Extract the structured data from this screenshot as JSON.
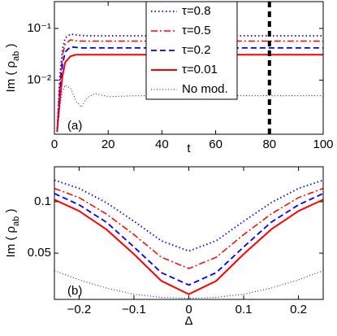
{
  "chart_data": [
    {
      "type": "line",
      "log_y": true,
      "legend": "upper center",
      "xlabel": "t",
      "ylabel": [
        "Im ( ρ",
        "ab",
        " )"
      ],
      "annotation": "(a)",
      "vline": 80,
      "xlim": [
        0,
        100
      ],
      "xticks": [
        0,
        20,
        40,
        60,
        80,
        100
      ],
      "ylim": [
        0.0009,
        0.33
      ],
      "yticks": [
        {
          "value": 0.01,
          "label": "10⁻²"
        },
        {
          "value": 0.1,
          "label": "10⁻¹"
        }
      ],
      "x": [
        1,
        2,
        3,
        4,
        6,
        8,
        10,
        12,
        15,
        20,
        30,
        40,
        60,
        80,
        100
      ],
      "series": [
        {
          "name": "τ=0.8",
          "color": "#0000ff",
          "style": "dotted",
          "values": [
            0.001,
            0.012,
            0.04,
            0.065,
            0.078,
            0.075,
            0.073,
            0.072,
            0.072,
            0.072,
            0.072,
            0.072,
            0.072,
            0.072,
            0.072
          ]
        },
        {
          "name": "τ=0.5",
          "color": "#ff0000",
          "style": "dashdot",
          "values": [
            0.001,
            0.008,
            0.03,
            0.05,
            0.06,
            0.058,
            0.057,
            0.057,
            0.057,
            0.057,
            0.057,
            0.057,
            0.057,
            0.057,
            0.057
          ]
        },
        {
          "name": "τ=0.2",
          "color": "#0000ff",
          "style": "dashed",
          "values": [
            0.001,
            0.006,
            0.02,
            0.035,
            0.044,
            0.043,
            0.042,
            0.042,
            0.042,
            0.042,
            0.042,
            0.042,
            0.042,
            0.042,
            0.042
          ]
        },
        {
          "name": "τ=0.01",
          "color": "#ff0000",
          "style": "solid",
          "values": [
            0.001,
            0.004,
            0.012,
            0.022,
            0.029,
            0.031,
            0.031,
            0.031,
            0.031,
            0.031,
            0.031,
            0.031,
            0.031,
            0.031,
            0.031
          ]
        },
        {
          "name": "No mod.",
          "color": "#0000ff",
          "style": "finedot",
          "values": [
            0.001,
            0.003,
            0.006,
            0.008,
            0.007,
            0.004,
            0.003,
            0.0045,
            0.0055,
            0.0048,
            0.005,
            0.005,
            0.005,
            0.005,
            0.005
          ]
        }
      ]
    },
    {
      "type": "line",
      "xlabel": "Δ",
      "ylabel": [
        "Im ( ρ",
        "ab",
        " )"
      ],
      "annotation": "(b)",
      "xlim": [
        -0.245,
        0.245
      ],
      "xticks": [
        {
          "value": -0.2,
          "label": "−0.2"
        },
        {
          "value": -0.1,
          "label": "−0.1"
        },
        0,
        0.1,
        0.2
      ],
      "ylim": [
        0.005,
        0.134
      ],
      "yticks": [
        0.05,
        0.1
      ],
      "x": [
        -0.245,
        -0.2,
        -0.15,
        -0.1,
        -0.05,
        0,
        0.05,
        0.1,
        0.15,
        0.2,
        0.245
      ],
      "series": [
        {
          "color": "#0000ff",
          "style": "dotted",
          "values": [
            0.121,
            0.113,
            0.099,
            0.081,
            0.062,
            0.052,
            0.062,
            0.081,
            0.099,
            0.113,
            0.121
          ]
        },
        {
          "color": "#ff0000",
          "style": "dashdot",
          "values": [
            0.113,
            0.104,
            0.088,
            0.068,
            0.046,
            0.035,
            0.046,
            0.068,
            0.088,
            0.104,
            0.113
          ]
        },
        {
          "color": "#0000ff",
          "style": "dashed",
          "values": [
            0.108,
            0.097,
            0.08,
            0.056,
            0.031,
            0.019,
            0.031,
            0.056,
            0.08,
            0.097,
            0.108
          ]
        },
        {
          "color": "#ff0000",
          "style": "solid",
          "values": [
            0.102,
            0.091,
            0.073,
            0.049,
            0.023,
            0.01,
            0.023,
            0.049,
            0.073,
            0.091,
            0.102
          ]
        },
        {
          "color": "#0000ff",
          "style": "finedot",
          "values": [
            0.033,
            0.024,
            0.016,
            0.01,
            0.007,
            0.006,
            0.007,
            0.01,
            0.016,
            0.024,
            0.033
          ]
        }
      ]
    }
  ]
}
